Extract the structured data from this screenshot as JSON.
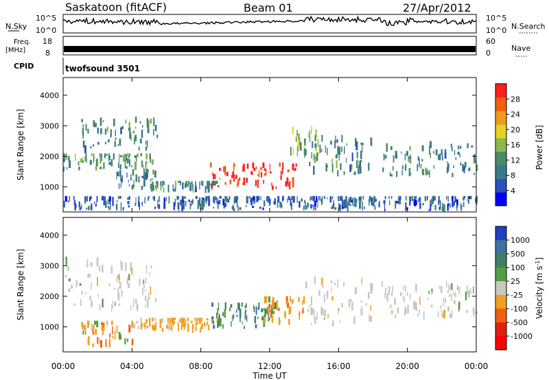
{
  "header": {
    "station": "Saskatoon (fitACF)",
    "beam": "Beam 01",
    "date": "27/Apr/2012"
  },
  "top_panels": {
    "nsky_label": "N.Sky",
    "nsky_ticks": [
      "10^5",
      "10^0"
    ],
    "nsearch_label": "N.Search",
    "nsearch_ticks": [
      "10^5",
      "10^0"
    ],
    "freq_label": "Freq.",
    "freq_unit": "[MHz]",
    "freq_ticks": [
      "18",
      "8"
    ],
    "nave_label": "Nave",
    "nave_ticks": [
      "60",
      "0"
    ],
    "cpid_label": "CPID",
    "cpid_value": "twofsound 3501"
  },
  "colors": {
    "power": [
      "#0000ff",
      "#2a4fbf",
      "#3a7a8a",
      "#4a8a6a",
      "#8ab84a",
      "#e8d020",
      "#f09a20",
      "#f06010",
      "#ff2020"
    ],
    "velocity": [
      "#2040c0",
      "#4070a0",
      "#408060",
      "#50a040",
      "#c8c8c0",
      "#f0a020",
      "#f06010",
      "#e02010",
      "#ff0000"
    ]
  },
  "chart_data": [
    {
      "type": "heatmap",
      "name": "power",
      "xlabel": "Time UT",
      "ylabel": "Slant Range [km]",
      "x_ticks": [
        "00:00",
        "04:00",
        "08:00",
        "12:00",
        "16:00",
        "20:00",
        "00:00"
      ],
      "xlim": [
        0,
        24
      ],
      "y_ticks": [
        1000,
        2000,
        3000,
        4000
      ],
      "ylim": [
        180,
        4580
      ],
      "colorbar_label": "Power [dB]",
      "colorbar_ticks": [
        4,
        8,
        12,
        16,
        20,
        24,
        28
      ],
      "colorbar_range": [
        0,
        32
      ],
      "features": [
        {
          "t0": 0.0,
          "t1": 5.2,
          "r0": 1500,
          "r1": 2100,
          "level": 12
        },
        {
          "t0": 1.0,
          "t1": 5.5,
          "r0": 2100,
          "r1": 3300,
          "level": 10
        },
        {
          "t0": 3.0,
          "t1": 5.5,
          "r0": 900,
          "r1": 1600,
          "level": 9
        },
        {
          "t0": 5.0,
          "t1": 9.0,
          "r0": 800,
          "r1": 1200,
          "level": 10
        },
        {
          "t0": 8.5,
          "t1": 13.5,
          "r0": 900,
          "r1": 1800,
          "level": 28
        },
        {
          "t0": 13.0,
          "t1": 15.0,
          "r0": 1800,
          "r1": 3000,
          "level": 16
        },
        {
          "t0": 14.0,
          "t1": 18.0,
          "r0": 1300,
          "r1": 2700,
          "level": 10
        },
        {
          "t0": 18.5,
          "t1": 24.0,
          "r0": 1300,
          "r1": 2500,
          "level": 10
        },
        {
          "t0": 0.0,
          "t1": 24.0,
          "r0": 200,
          "r1": 700,
          "level": 6
        }
      ]
    },
    {
      "type": "heatmap",
      "name": "velocity",
      "xlabel": "Time UT",
      "ylabel": "Slant Range [km]",
      "x_ticks": [
        "00:00",
        "04:00",
        "08:00",
        "12:00",
        "16:00",
        "20:00",
        "00:00"
      ],
      "xlim": [
        0,
        24
      ],
      "y_ticks": [
        1000,
        2000,
        3000,
        4000
      ],
      "ylim": [
        180,
        4580
      ],
      "colorbar_label": "Velocity [m s",
      "colorbar_unit_sup": "-1",
      "colorbar_ticks": [
        "1000",
        "500",
        "100",
        "25",
        "-25",
        "-100",
        "-500",
        "-1000"
      ],
      "features": [
        {
          "t0": 0.0,
          "t1": 5.5,
          "r0": 1500,
          "r1": 3300,
          "level": 0
        },
        {
          "t0": 1.0,
          "t1": 4.0,
          "r0": 300,
          "r1": 1200,
          "level": -150
        },
        {
          "t0": 4.0,
          "t1": 9.0,
          "r0": 800,
          "r1": 1300,
          "level": -100
        },
        {
          "t0": 8.5,
          "t1": 12.5,
          "r0": 900,
          "r1": 1800,
          "level": 200
        },
        {
          "t0": 11.5,
          "t1": 14.0,
          "r0": 1000,
          "r1": 2000,
          "level": -200
        },
        {
          "t0": 14.0,
          "t1": 18.0,
          "r0": 1000,
          "r1": 2700,
          "level": 0
        },
        {
          "t0": 18.5,
          "t1": 24.0,
          "r0": 1200,
          "r1": 2500,
          "level": 0
        }
      ]
    }
  ]
}
